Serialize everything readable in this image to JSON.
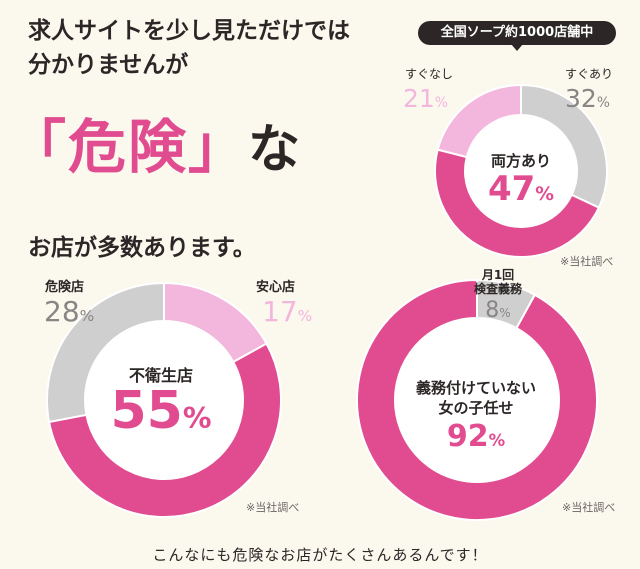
{
  "headline": {
    "line1": "求人サイトを少し見ただけでは",
    "line2": "分かりませんが",
    "danger_word": "「危険」",
    "danger_tail": "な",
    "line3": "お店が多数あります。"
  },
  "footer": "こんなにも危険なお店がたくさんあるんです！",
  "colors": {
    "pink": "#e14b8f",
    "light_pink": "#f3b6dd",
    "gray": "#cfcfcf",
    "dark": "#2c2626",
    "background": "#fbf8ee"
  },
  "chart_data": [
    {
      "type": "pie",
      "style": "donut",
      "title": "全国ソープ約1000店舗中",
      "slices": [
        {
          "label": "両方あり",
          "value": 47,
          "color": "#e14b8f"
        },
        {
          "label": "すぐなし",
          "value": 21,
          "color": "#f3b6dd"
        },
        {
          "label": "すぐあり",
          "value": 32,
          "color": "#cfcfcf"
        }
      ],
      "unit": "%",
      "note": "※当社調べ"
    },
    {
      "type": "pie",
      "style": "donut",
      "slices": [
        {
          "label": "不衛生店",
          "value": 55,
          "color": "#e14b8f"
        },
        {
          "label": "危険店",
          "value": 28,
          "color": "#cfcfcf"
        },
        {
          "label": "安心店",
          "value": 17,
          "color": "#f3b6dd"
        }
      ],
      "unit": "%",
      "note": "※当社調べ"
    },
    {
      "type": "pie",
      "style": "donut",
      "slices": [
        {
          "label": "義務付けていない女の子任せ",
          "label_lines": [
            "義務付けていない",
            "女の子任せ"
          ],
          "value": 92,
          "color": "#e14b8f"
        },
        {
          "label": "月1回検査義務",
          "label_lines": [
            "月1回",
            "検査義務"
          ],
          "value": 8,
          "color": "#cfcfcf"
        }
      ],
      "unit": "%",
      "note": "※当社調べ"
    }
  ]
}
